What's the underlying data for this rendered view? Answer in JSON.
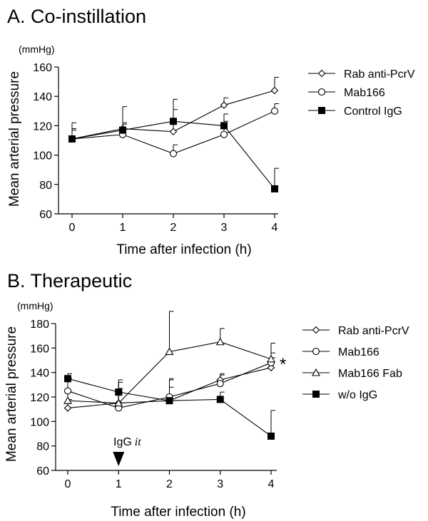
{
  "chart_data": [
    {
      "type": "line",
      "title": "A.  Co-instillation",
      "units_label": "(mmHg)",
      "xlabel": "Time after infection (h)",
      "ylabel": "Mean arterial pressure",
      "xlim": [
        0,
        4
      ],
      "ylim": [
        60,
        160
      ],
      "x_ticks": [
        0,
        1,
        2,
        3,
        4
      ],
      "y_ticks": [
        60,
        80,
        100,
        120,
        140,
        160
      ],
      "legend_position": "right",
      "grid": false,
      "x": [
        0,
        1,
        2,
        3,
        4
      ],
      "series": [
        {
          "name": "Rab anti-PcrV",
          "marker": "diamond-open",
          "values": [
            111,
            118,
            116,
            134,
            144
          ],
          "errors": [
            6,
            15,
            22,
            5,
            9
          ]
        },
        {
          "name": "Mab166",
          "marker": "circle-open",
          "values": [
            111,
            114,
            101,
            114,
            130
          ],
          "errors": [
            11,
            7,
            6,
            14,
            5
          ]
        },
        {
          "name": "Control IgG",
          "marker": "square-filled",
          "values": [
            111,
            117,
            123,
            120,
            77
          ],
          "errors": [
            7,
            5,
            8,
            3,
            14
          ]
        }
      ]
    },
    {
      "type": "line",
      "title": "B. Therapeutic",
      "units_label": "(mmHg)",
      "xlabel": "Time after infection (h)",
      "ylabel": "Mean arterial pressure",
      "xlim": [
        0,
        4
      ],
      "ylim": [
        60,
        180
      ],
      "x_ticks": [
        0,
        1,
        2,
        3,
        4
      ],
      "y_ticks": [
        60,
        80,
        100,
        120,
        140,
        160,
        180
      ],
      "legend_position": "right",
      "grid": false,
      "x": [
        0,
        1,
        2,
        3,
        4
      ],
      "series": [
        {
          "name": "Rab anti-PcrV",
          "marker": "diamond-open",
          "values": [
            111,
            115,
            117,
            134,
            144
          ],
          "errors": [
            7,
            12,
            11,
            5,
            8
          ]
        },
        {
          "name": "Mab166",
          "marker": "circle-open",
          "values": [
            125,
            111,
            120,
            131,
            148
          ],
          "errors": [
            10,
            13,
            14,
            7,
            8
          ]
        },
        {
          "name": "Mab166 Fab",
          "marker": "triangle-open",
          "values": [
            117,
            115,
            157,
            165,
            151
          ],
          "errors": [
            7,
            19,
            33,
            11,
            13
          ]
        },
        {
          "name": "w/o IgG",
          "marker": "square-filled",
          "values": [
            135,
            124,
            117,
            118,
            88
          ],
          "errors": [
            4,
            8,
            18,
            6,
            21
          ]
        }
      ],
      "annotations": {
        "arrow_label_main": "IgG",
        "arrow_label_italic": "it",
        "arrow_x": 1,
        "star": "*"
      }
    }
  ]
}
